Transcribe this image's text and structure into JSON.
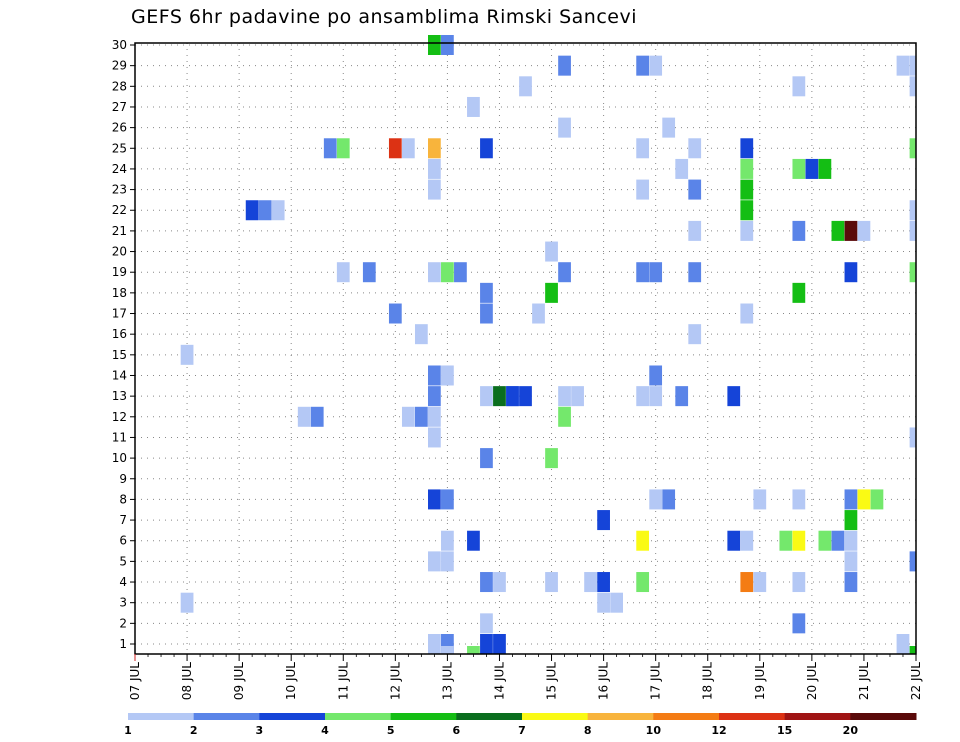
{
  "chart_data": {
    "type": "heatmap",
    "title": "GEFS 6hr padavine po ansamblima Rimski Sancevi",
    "x_tick_labels": [
      "07 JUL",
      "08 JUL",
      "09 JUL",
      "10 JUL",
      "11 JUL",
      "12 JUL",
      "13 JUL",
      "14 JUL",
      "15 JUL",
      "16 JUL",
      "17 JUL",
      "18 JUL",
      "19 JUL",
      "20 JUL",
      "21 JUL",
      "22 JUL"
    ],
    "y_tick_labels": [
      "1",
      "2",
      "3",
      "4",
      "5",
      "6",
      "7",
      "8",
      "9",
      "10",
      "11",
      "12",
      "13",
      "14",
      "15",
      "16",
      "17",
      "18",
      "19",
      "20",
      "21",
      "22",
      "23",
      "24",
      "25",
      "26",
      "27",
      "28",
      "29",
      "30"
    ],
    "x_range": [
      0,
      60
    ],
    "y_range": [
      0,
      30
    ],
    "grid": true,
    "legend": {
      "placement": "bottom",
      "boundaries": [
        "1",
        "2",
        "3",
        "4",
        "5",
        "6",
        "7",
        "8",
        "10",
        "12",
        "15",
        "20"
      ],
      "colors": [
        "#b4c8f5",
        "#5a84e8",
        "#1544d8",
        "#74e86c",
        "#14be14",
        "#0a6e1e",
        "#fafa14",
        "#f8b43c",
        "#f47c14",
        "#dc3214",
        "#a01414",
        "#5a0a0a"
      ]
    },
    "cells": [
      [
        4,
        3,
        1
      ],
      [
        4,
        15,
        1
      ],
      [
        9,
        22,
        3
      ],
      [
        10,
        22,
        2
      ],
      [
        11,
        22,
        1
      ],
      [
        13,
        12,
        1
      ],
      [
        14,
        12,
        2
      ],
      [
        15,
        25,
        2
      ],
      [
        16,
        25,
        4
      ],
      [
        16,
        19,
        1
      ],
      [
        18,
        19,
        2
      ],
      [
        20,
        17,
        2
      ],
      [
        20,
        25,
        10
      ],
      [
        21,
        25,
        1
      ],
      [
        21,
        12,
        1
      ],
      [
        22,
        16,
        1
      ],
      [
        22,
        12,
        2
      ],
      [
        23,
        14,
        2
      ],
      [
        23,
        12,
        1
      ],
      [
        23,
        13,
        2
      ],
      [
        23,
        11,
        1
      ],
      [
        23,
        8,
        3
      ],
      [
        23,
        5,
        1
      ],
      [
        23,
        1,
        1
      ],
      [
        23,
        19,
        1
      ],
      [
        23,
        25,
        8
      ],
      [
        23,
        24,
        1
      ],
      [
        23,
        23,
        1
      ],
      [
        23,
        30,
        5
      ],
      [
        24,
        30,
        2
      ],
      [
        24,
        19,
        4
      ],
      [
        24,
        14,
        1
      ],
      [
        24,
        8,
        2
      ],
      [
        24,
        6,
        1
      ],
      [
        24,
        5,
        1
      ],
      [
        24,
        1,
        2
      ],
      [
        24,
        0,
        1
      ],
      [
        25,
        19,
        2
      ],
      [
        26,
        27,
        1
      ],
      [
        26,
        0,
        4
      ],
      [
        26,
        6,
        3
      ],
      [
        27,
        25,
        3
      ],
      [
        27,
        18,
        2
      ],
      [
        27,
        17,
        2
      ],
      [
        27,
        13,
        1
      ],
      [
        27,
        10,
        2
      ],
      [
        27,
        4,
        2
      ],
      [
        27,
        1,
        3
      ],
      [
        27,
        2,
        1
      ],
      [
        28,
        13,
        6
      ],
      [
        28,
        4,
        1
      ],
      [
        28,
        1,
        3
      ],
      [
        29,
        13,
        2
      ],
      [
        29,
        13,
        3
      ],
      [
        30,
        13,
        3
      ],
      [
        30,
        28,
        1
      ],
      [
        31,
        17,
        1
      ],
      [
        32,
        20,
        1
      ],
      [
        32,
        18,
        5
      ],
      [
        32,
        10,
        4
      ],
      [
        32,
        4,
        1
      ],
      [
        33,
        29,
        2
      ],
      [
        33,
        26,
        1
      ],
      [
        33,
        19,
        2
      ],
      [
        33,
        13,
        1
      ],
      [
        33,
        12,
        4
      ],
      [
        34,
        13,
        1
      ],
      [
        35,
        4,
        1
      ],
      [
        36,
        7,
        3
      ],
      [
        36,
        4,
        3
      ],
      [
        36,
        3,
        1
      ],
      [
        37,
        3,
        1
      ],
      [
        39,
        29,
        2
      ],
      [
        39,
        25,
        1
      ],
      [
        39,
        23,
        1
      ],
      [
        39,
        19,
        2
      ],
      [
        39,
        13,
        1
      ],
      [
        39,
        6,
        7
      ],
      [
        39,
        4,
        4
      ],
      [
        40,
        29,
        1
      ],
      [
        40,
        19,
        2
      ],
      [
        40,
        14,
        2
      ],
      [
        40,
        13,
        1
      ],
      [
        40,
        8,
        1
      ],
      [
        41,
        26,
        1
      ],
      [
        41,
        8,
        2
      ],
      [
        42,
        24,
        1
      ],
      [
        42,
        13,
        2
      ],
      [
        43,
        25,
        1
      ],
      [
        43,
        23,
        2
      ],
      [
        43,
        21,
        1
      ],
      [
        43,
        19,
        2
      ],
      [
        43,
        16,
        1
      ],
      [
        46,
        13,
        3
      ],
      [
        46,
        6,
        3
      ],
      [
        47,
        6,
        1
      ],
      [
        47,
        4,
        9
      ],
      [
        47,
        25,
        3
      ],
      [
        47,
        24,
        4
      ],
      [
        47,
        23,
        5
      ],
      [
        47,
        22,
        5
      ],
      [
        47,
        21,
        1
      ],
      [
        47,
        17,
        1
      ],
      [
        48,
        8,
        1
      ],
      [
        48,
        4,
        1
      ],
      [
        50,
        6,
        4
      ],
      [
        51,
        6,
        7
      ],
      [
        51,
        28,
        1
      ],
      [
        51,
        24,
        4
      ],
      [
        51,
        21,
        2
      ],
      [
        51,
        18,
        5
      ],
      [
        51,
        8,
        1
      ],
      [
        51,
        4,
        1
      ],
      [
        51,
        2,
        2
      ],
      [
        52,
        24,
        3
      ],
      [
        53,
        24,
        5
      ],
      [
        53,
        6,
        4
      ],
      [
        54,
        6,
        2
      ],
      [
        54,
        21,
        5
      ],
      [
        55,
        21,
        12
      ],
      [
        56,
        21,
        1
      ],
      [
        55,
        19,
        3
      ],
      [
        55,
        8,
        2
      ],
      [
        55,
        7,
        5
      ],
      [
        55,
        6,
        1
      ],
      [
        55,
        5,
        1
      ],
      [
        55,
        4,
        2
      ],
      [
        56,
        8,
        7
      ],
      [
        57,
        8,
        4
      ],
      [
        59,
        29,
        1
      ],
      [
        60,
        29,
        1
      ],
      [
        59,
        1,
        1
      ],
      [
        60,
        0,
        5
      ],
      [
        60,
        25,
        4
      ],
      [
        60,
        19,
        4
      ],
      [
        60,
        21,
        1
      ],
      [
        60,
        22,
        1
      ],
      [
        60,
        11,
        1
      ],
      [
        60,
        5,
        2
      ],
      [
        60,
        28,
        1
      ]
    ]
  }
}
